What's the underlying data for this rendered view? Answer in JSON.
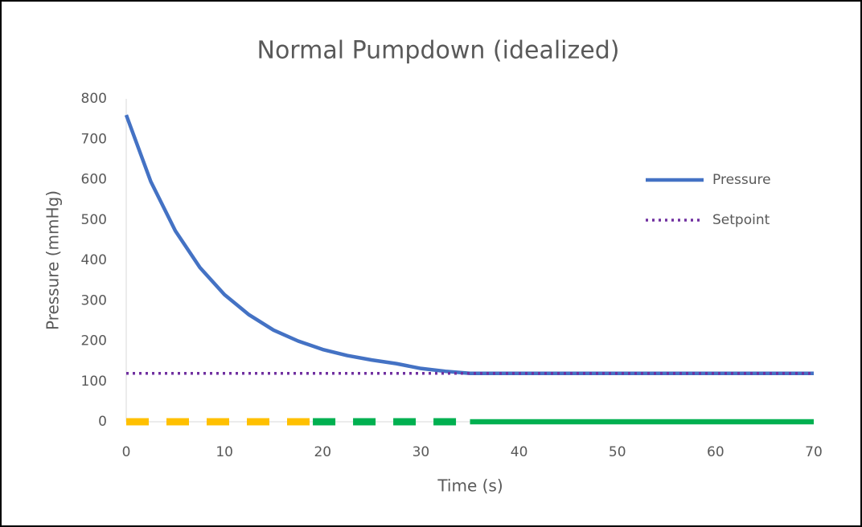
{
  "chart_data": {
    "type": "line",
    "title": "Normal Pumpdown (idealized)",
    "x_label": "Time (s)",
    "y_label": "Pressure (mmHg)",
    "xlim": [
      0,
      70
    ],
    "xticks": [
      0,
      10,
      20,
      30,
      40,
      50,
      60,
      70
    ],
    "ylim": [
      0,
      800
    ],
    "yticks": [
      0,
      100,
      200,
      300,
      400,
      500,
      600,
      700,
      800
    ],
    "grid": false,
    "legend": "right",
    "series": [
      {
        "name": "Pressure",
        "color": "#4472c4",
        "line_style": "solid",
        "x": [
          0,
          2.5,
          5,
          7.5,
          10,
          12.5,
          15,
          17.5,
          20,
          22.5,
          25,
          27.5,
          30,
          32.5,
          35,
          40,
          45,
          50,
          55,
          60,
          65,
          70
        ],
        "values": [
          760,
          595,
          473,
          382,
          315,
          265,
          227,
          200,
          179,
          164,
          153,
          144,
          132,
          125,
          120,
          120,
          120,
          120,
          120,
          120,
          120,
          120
        ]
      },
      {
        "name": "Setpoint",
        "color": "#7030a0",
        "line_style": "dot",
        "x": [
          0,
          70
        ],
        "values": [
          120,
          120
        ]
      },
      {
        "color": "#ffc000",
        "line_style": "dash",
        "x": [
          0,
          19
        ],
        "values": [
          0,
          0
        ]
      },
      {
        "color": "#00b050",
        "line_style": "dash",
        "x": [
          19,
          35
        ],
        "values": [
          0,
          0
        ]
      },
      {
        "color": "#00b050",
        "line_style": "solid",
        "x": [
          35,
          70
        ],
        "values": [
          0,
          0
        ]
      }
    ]
  }
}
